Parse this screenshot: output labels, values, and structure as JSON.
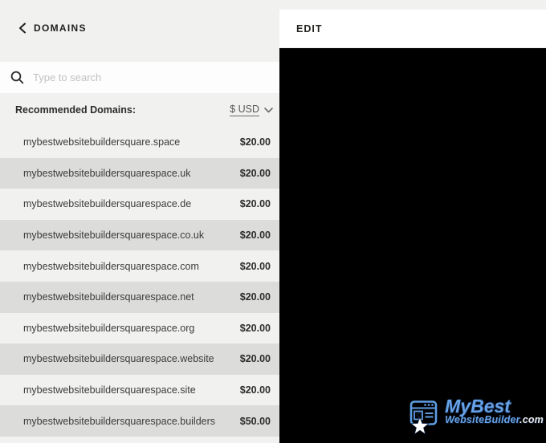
{
  "left_panel": {
    "back_label": "DOMAINS",
    "search": {
      "placeholder": "Type to search",
      "value": ""
    },
    "recommended_label": "Recommended Domains:",
    "currency": {
      "selected": "$ USD"
    },
    "rows": [
      {
        "domain": "mybestwebsitebuildersquare.space",
        "price": "$20.00"
      },
      {
        "domain": "mybestwebsitebuildersquarespace.uk",
        "price": "$20.00"
      },
      {
        "domain": "mybestwebsitebuildersquarespace.de",
        "price": "$20.00"
      },
      {
        "domain": "mybestwebsitebuildersquarespace.co.uk",
        "price": "$20.00"
      },
      {
        "domain": "mybestwebsitebuildersquarespace.com",
        "price": "$20.00"
      },
      {
        "domain": "mybestwebsitebuildersquarespace.net",
        "price": "$20.00"
      },
      {
        "domain": "mybestwebsitebuildersquarespace.org",
        "price": "$20.00"
      },
      {
        "domain": "mybestwebsitebuildersquarespace.website",
        "price": "$20.00"
      },
      {
        "domain": "mybestwebsitebuildersquarespace.site",
        "price": "$20.00"
      },
      {
        "domain": "mybestwebsitebuildersquarespace.builders",
        "price": "$50.00"
      }
    ]
  },
  "edit_panel": {
    "title": "EDIT"
  },
  "watermark": {
    "top": "MyBest",
    "bottom": "WebsiteBuilder",
    "tld": ".com"
  },
  "icons": {
    "back": "chevron-left",
    "search": "magnifier",
    "currency_dropdown": "chevron-down",
    "logo_mark": "browser-window-with-heart-and-star"
  },
  "colors": {
    "panel_bg": "#f1f1ef",
    "row_alt_bg": "#dcdcda",
    "search_bg": "#fdfdfd",
    "edit_header_bg": "#ffffff",
    "preview_bg": "#000000",
    "text_dark": "#1e1e1c",
    "placeholder": "#c1c1bf",
    "brand_blue": "#66a2e8"
  }
}
